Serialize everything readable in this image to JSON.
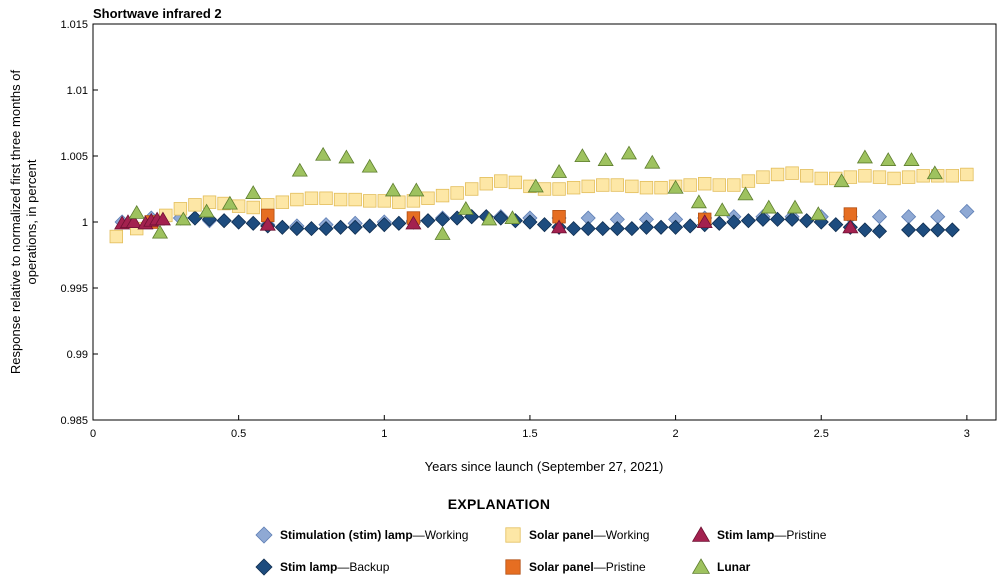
{
  "panel_title": "Shortwave infrared 2",
  "legend": {
    "heading": "EXPLANATION",
    "items": [
      {
        "key": "stim_working",
        "name": "Stimulation (stim) lamp",
        "suffix": "—Working",
        "marker": "diamond",
        "color": "#8fa9d4",
        "stroke": "#5f7fb5"
      },
      {
        "key": "solar_working",
        "name": "Solar panel",
        "suffix": "—Working",
        "marker": "square",
        "color": "#fde7a6",
        "stroke": "#e2bd5a"
      },
      {
        "key": "stim_pristine",
        "name": "Stim lamp",
        "suffix": "—Pristine",
        "marker": "triangle",
        "color": "#a3214f",
        "stroke": "#6e1133"
      },
      {
        "key": "stim_backup",
        "name": "Stim lamp",
        "suffix": "—Backup",
        "marker": "diamond",
        "color": "#1e4c7e",
        "stroke": "#0f2d4f"
      },
      {
        "key": "solar_pristine",
        "name": "Solar panel",
        "suffix": "—Pristine",
        "marker": "square",
        "color": "#e66e22",
        "stroke": "#b24e10"
      },
      {
        "key": "lunar",
        "name": "Lunar",
        "suffix": "",
        "marker": "triangle",
        "color": "#9ec25f",
        "stroke": "#5d7d2e"
      }
    ]
  },
  "chart_data": {
    "type": "scatter",
    "title": "Shortwave infrared 2",
    "xlabel": "Years since launch (September 27, 2021)",
    "ylabel": "Response relative to normalized first three months of operations, in percent",
    "xlim": [
      0,
      3.1
    ],
    "ylim": [
      0.985,
      1.015
    ],
    "x_ticks": [
      0,
      0.5,
      1,
      1.5,
      2,
      2.5,
      3
    ],
    "x_tick_labels": [
      "0",
      "0.5",
      "1",
      "1.5",
      "2",
      "2.5",
      "3"
    ],
    "y_ticks": [
      0.985,
      0.99,
      0.995,
      1,
      1.005,
      1.01,
      1.015
    ],
    "y_tick_labels": [
      "0.985",
      "0.99",
      "0.995",
      "1",
      "1.005",
      "1.01",
      "1.015"
    ],
    "grid": false,
    "series": [
      {
        "name": "Stimulation (stim) lamp—Working",
        "key": "stim_working",
        "x": [
          0.1,
          0.2,
          0.3,
          0.4,
          0.5,
          0.6,
          0.7,
          0.8,
          0.9,
          1.0,
          1.1,
          1.2,
          1.3,
          1.4,
          1.5,
          1.6,
          1.7,
          1.8,
          1.9,
          2.0,
          2.1,
          2.2,
          2.3,
          2.4,
          2.5,
          2.6,
          2.7,
          2.8,
          2.9,
          3.0
        ],
        "y": [
          1.0,
          1.0003,
          1.0003,
          1.0001,
          1.0,
          0.9998,
          0.9997,
          0.9998,
          0.9999,
          1.0,
          1.0001,
          1.0003,
          1.0004,
          1.0004,
          1.0003,
          1.0003,
          1.0003,
          1.0002,
          1.0002,
          1.0002,
          1.0003,
          1.0004,
          1.0004,
          1.0004,
          1.0004,
          1.0004,
          1.0004,
          1.0004,
          1.0004,
          1.0008
        ]
      },
      {
        "name": "Stim lamp—Backup",
        "key": "stim_backup",
        "x": [
          0.35,
          0.4,
          0.45,
          0.5,
          0.55,
          0.6,
          0.65,
          0.7,
          0.75,
          0.8,
          0.85,
          0.9,
          0.95,
          1.0,
          1.05,
          1.1,
          1.15,
          1.2,
          1.25,
          1.3,
          1.35,
          1.4,
          1.45,
          1.5,
          1.55,
          1.6,
          1.65,
          1.7,
          1.75,
          1.8,
          1.85,
          1.9,
          1.95,
          2.0,
          2.05,
          2.1,
          2.15,
          2.2,
          2.25,
          2.3,
          2.35,
          2.4,
          2.45,
          2.5,
          2.55,
          2.6,
          2.65,
          2.7,
          2.8,
          2.85,
          2.9,
          2.95
        ],
        "y": [
          1.0003,
          1.0002,
          1.0001,
          1.0,
          0.9999,
          0.9997,
          0.9996,
          0.9995,
          0.9995,
          0.9995,
          0.9996,
          0.9996,
          0.9997,
          0.9998,
          0.9999,
          1.0,
          1.0001,
          1.0002,
          1.0003,
          1.0004,
          1.0004,
          1.0003,
          1.0001,
          1.0,
          0.9998,
          0.9996,
          0.9995,
          0.9995,
          0.9995,
          0.9995,
          0.9995,
          0.9996,
          0.9996,
          0.9996,
          0.9997,
          0.9998,
          0.9999,
          1.0,
          1.0001,
          1.0002,
          1.0002,
          1.0002,
          1.0001,
          1.0,
          0.9998,
          0.9996,
          0.9994,
          0.9993,
          0.9994,
          0.9994,
          0.9994,
          0.9994
        ]
      },
      {
        "name": "Solar panel—Working",
        "key": "solar_working",
        "x": [
          0.08,
          0.15,
          0.2,
          0.25,
          0.3,
          0.35,
          0.4,
          0.45,
          0.5,
          0.55,
          0.6,
          0.65,
          0.7,
          0.75,
          0.8,
          0.85,
          0.9,
          0.95,
          1.0,
          1.05,
          1.1,
          1.15,
          1.2,
          1.25,
          1.3,
          1.35,
          1.4,
          1.45,
          1.5,
          1.55,
          1.6,
          1.65,
          1.7,
          1.75,
          1.8,
          1.85,
          1.9,
          1.95,
          2.0,
          2.05,
          2.1,
          2.15,
          2.2,
          2.25,
          2.3,
          2.35,
          2.4,
          2.45,
          2.5,
          2.55,
          2.6,
          2.65,
          2.7,
          2.75,
          2.8,
          2.85,
          2.9,
          2.95,
          3.0
        ],
        "y": [
          0.9989,
          0.9995,
          1.0,
          1.0005,
          1.001,
          1.0013,
          1.0015,
          1.0014,
          1.0012,
          1.0011,
          1.0013,
          1.0015,
          1.0017,
          1.0018,
          1.0018,
          1.0017,
          1.0017,
          1.0016,
          1.0016,
          1.0015,
          1.0016,
          1.0018,
          1.002,
          1.0022,
          1.0025,
          1.0029,
          1.0031,
          1.003,
          1.0027,
          1.0025,
          1.0025,
          1.0026,
          1.0027,
          1.0028,
          1.0028,
          1.0027,
          1.0026,
          1.0026,
          1.0027,
          1.0028,
          1.0029,
          1.0028,
          1.0028,
          1.0031,
          1.0034,
          1.0036,
          1.0037,
          1.0035,
          1.0033,
          1.0033,
          1.0034,
          1.0035,
          1.0034,
          1.0033,
          1.0034,
          1.0035,
          1.0035,
          1.0035,
          1.0036
        ]
      },
      {
        "name": "Solar panel—Pristine",
        "key": "solar_pristine",
        "x": [
          0.2,
          0.6,
          1.1,
          1.6,
          2.1,
          2.6
        ],
        "y": [
          1.0,
          1.0005,
          1.0003,
          1.0004,
          1.0002,
          1.0006
        ]
      },
      {
        "name": "Stim lamp—Pristine",
        "key": "stim_pristine",
        "x": [
          0.1,
          0.12,
          0.14,
          0.18,
          0.2,
          0.22,
          0.24,
          0.6,
          1.1,
          1.6,
          2.1,
          2.6
        ],
        "y": [
          0.9999,
          1.0,
          1.0,
          0.9999,
          1.0001,
          1.0002,
          1.0002,
          0.9998,
          0.9999,
          0.9996,
          1.0,
          0.9996
        ]
      },
      {
        "name": "Lunar",
        "key": "lunar",
        "x": [
          0.15,
          0.23,
          0.31,
          0.39,
          0.47,
          0.55,
          0.71,
          0.79,
          0.87,
          0.95,
          1.03,
          1.11,
          1.2,
          1.28,
          1.36,
          1.44,
          1.52,
          1.6,
          1.68,
          1.76,
          1.84,
          1.92,
          2.0,
          2.08,
          2.16,
          2.24,
          2.32,
          2.41,
          2.49,
          2.57,
          2.65,
          2.73,
          2.81,
          2.89
        ],
        "y": [
          1.0007,
          0.9992,
          1.0002,
          1.0008,
          1.0014,
          1.0022,
          1.0039,
          1.0051,
          1.0049,
          1.0042,
          1.0024,
          1.0024,
          0.9991,
          1.001,
          1.0002,
          1.0003,
          1.0027,
          1.0038,
          1.005,
          1.0047,
          1.0052,
          1.0045,
          1.0026,
          1.0015,
          1.0009,
          1.0021,
          1.0011,
          1.0011,
          1.0006,
          1.0031,
          1.0049,
          1.0047,
          1.0047,
          1.0037
        ]
      }
    ]
  }
}
